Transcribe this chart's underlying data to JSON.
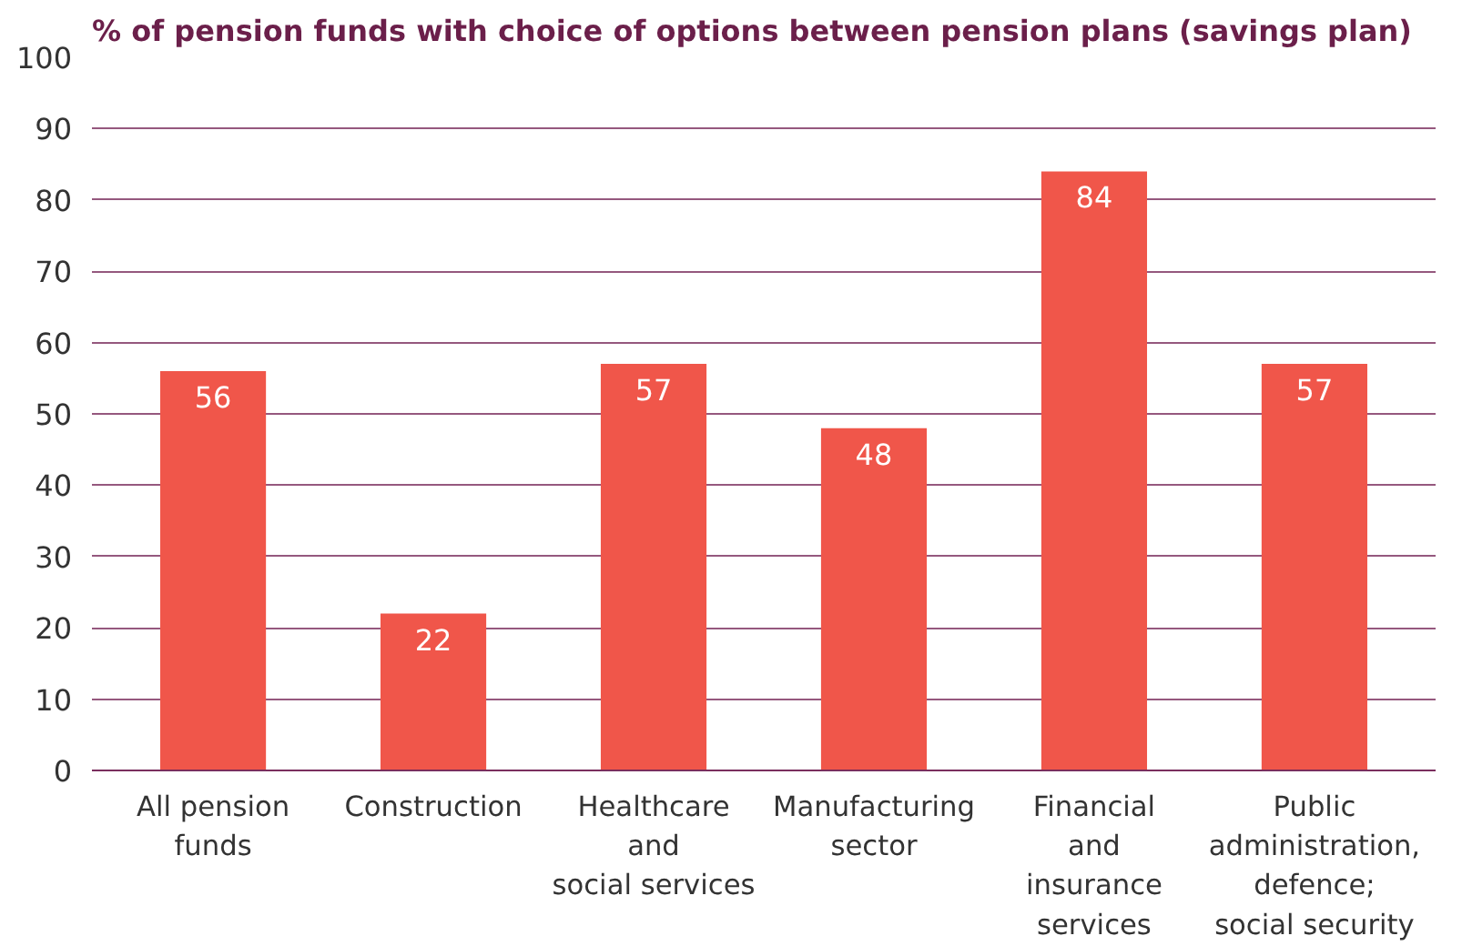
{
  "chart_data": {
    "type": "bar",
    "title": "% of pension funds with choice of options between pension plans (savings plan)",
    "categories": [
      "All pension\nfunds",
      "Construction",
      "Healthcare\nand\nsocial services",
      "Manufacturing\nsector",
      "Financial\nand\ninsurance\nservices",
      "Public\nadministration,\ndefence;\nsocial security"
    ],
    "values": [
      56,
      22,
      57,
      48,
      84,
      57
    ],
    "color": "#f0564a",
    "ylim": [
      0,
      100
    ],
    "yticks": [
      0,
      10,
      20,
      30,
      40,
      50,
      60,
      70,
      80,
      90,
      100
    ],
    "grid": "y",
    "data_labels": true
  }
}
